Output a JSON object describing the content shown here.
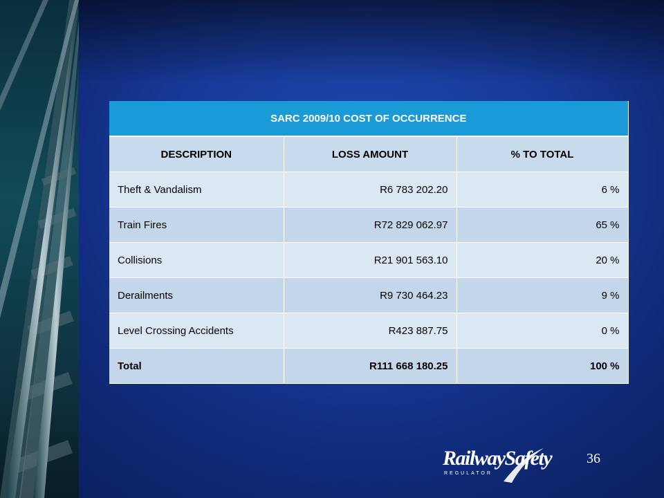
{
  "table": {
    "title": "SARC 2009/10 COST OF OCCURRENCE",
    "headers": [
      "DESCRIPTION",
      "LOSS AMOUNT",
      "% TO TOTAL"
    ],
    "rows": [
      {
        "description": "Theft & Vandalism",
        "loss": "R6 783 202.20",
        "pct": "6 %"
      },
      {
        "description": "Train Fires",
        "loss": "R72 829 062.97",
        "pct": "65 %"
      },
      {
        "description": "Collisions",
        "loss": "R21 901 563.10",
        "pct": "20 %"
      },
      {
        "description": "Derailments",
        "loss": "R9 730 464.23",
        "pct": "9 %"
      },
      {
        "description": "Level Crossing Accidents",
        "loss": "R423 887.75",
        "pct": "0 %"
      }
    ],
    "total": {
      "description": "Total",
      "loss": "R111 668 180.25",
      "pct": "100 %"
    }
  },
  "page_number": "36",
  "logo": {
    "main": "RailwaySafety",
    "sub": "REGULATOR"
  },
  "colors": {
    "header_blue": "#1a9ad6",
    "background_blue": "#183a9a"
  }
}
